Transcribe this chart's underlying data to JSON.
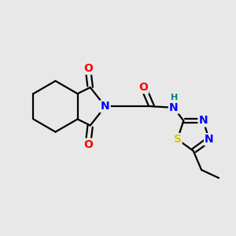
{
  "bg_color": "#e8e8e8",
  "atom_colors": {
    "C": "#000000",
    "N": "#0000ff",
    "O": "#ff0000",
    "S": "#cccc00",
    "H": "#008080"
  },
  "bond_color": "#000000",
  "bond_width": 1.6,
  "font_size_atom": 10,
  "font_size_h": 8
}
